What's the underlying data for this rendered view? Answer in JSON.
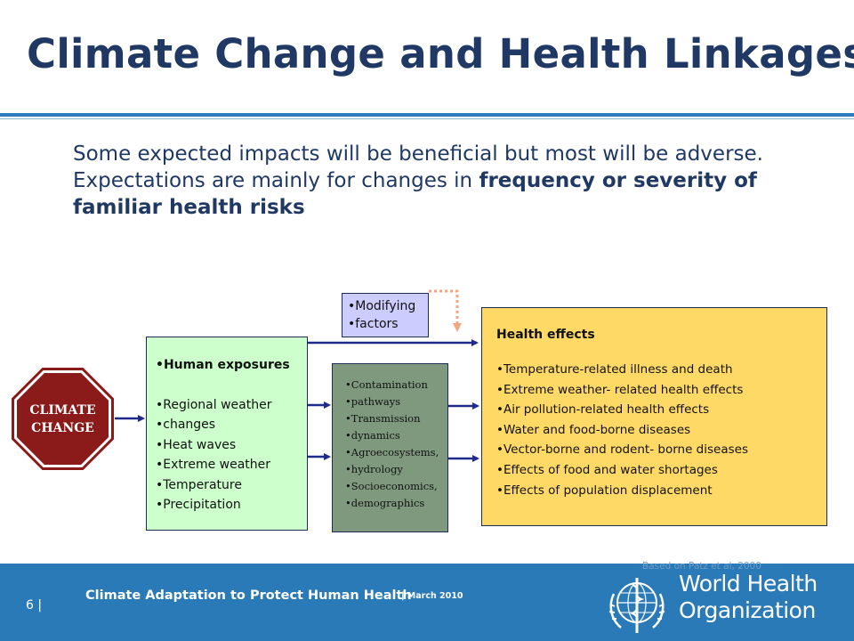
{
  "slide": {
    "title": "Climate Change and Health Linkages",
    "intro_plain": "Some expected impacts will be beneficial but most will be adverse. Expectations are mainly for changes in ",
    "intro_bold": "frequency or severity of familiar health risks"
  },
  "diagram": {
    "climate_change": {
      "line1": "CLIMATE",
      "line2": "CHANGE"
    },
    "human_exposures": {
      "heading": "•Human exposures",
      "items": [
        "•Regional weather",
        "•changes",
        "•Heat waves",
        "•Extreme weather",
        "•Temperature",
        "•Precipitation"
      ]
    },
    "modifying_factors": {
      "items": [
        "•Modifying",
        "•factors"
      ]
    },
    "pathways": {
      "items": [
        "•Contamination",
        "•pathways",
        "•Transmission",
        "•dynamics",
        "•Agroecosystems,",
        "•hydrology",
        "•Socioeconomics,",
        "•demographics"
      ]
    },
    "health_effects": {
      "heading": "Health effects",
      "items": [
        "•Temperature-related illness and death",
        "•Extreme weather- related health effects",
        "•Air pollution-related health effects",
        "•Water and food-borne diseases",
        "•Vector-borne and rodent- borne diseases",
        "•Effects of food and water shortages",
        "•Effects of population displacement"
      ]
    },
    "credit": "Based on Patz et al, 2000"
  },
  "footer": {
    "page_number": "6 |",
    "presentation": "Climate Adaptation to Protect Human Health",
    "date": "| March 2010",
    "who_line1": "World Health",
    "who_line2": "Organization"
  },
  "colors": {
    "title": "#1f3864",
    "footer_bar": "#2a7ab8",
    "stop_sign": "#8b1a1a",
    "exposures_box": "#ccffcc",
    "modifying_box": "#ccccff",
    "pathways_box": "#7f997f",
    "effects_box": "#ffd966",
    "arrow": "#1f2a8a",
    "dotted_arrow": "#f4a582"
  }
}
